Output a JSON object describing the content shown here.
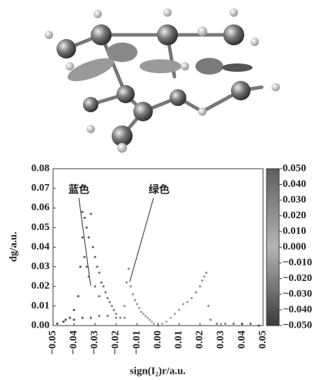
{
  "chart_data": {
    "type": "scatter",
    "xlabel": "sign(I₂)r/a.u.",
    "ylabel": "dg/a.u.",
    "annotations": [
      "蓝色",
      "绿色"
    ],
    "x": [
      -0.045,
      -0.042,
      -0.04,
      -0.038,
      -0.037,
      -0.036,
      -0.035,
      -0.034,
      -0.033,
      -0.032,
      -0.031,
      -0.03,
      -0.029,
      -0.028,
      -0.027,
      -0.026,
      -0.025,
      -0.024,
      -0.023,
      -0.022,
      -0.021,
      -0.02,
      -0.018,
      -0.033,
      -0.035,
      -0.03,
      -0.028,
      -0.036,
      -0.034,
      -0.016,
      -0.015,
      -0.014,
      -0.013,
      -0.012,
      -0.011,
      -0.01,
      -0.009,
      -0.008,
      -0.007,
      -0.006,
      -0.005,
      -0.004,
      -0.003,
      -0.002,
      0.0,
      0.002,
      0.004,
      0.006,
      0.008,
      0.01,
      0.012,
      0.014,
      0.016,
      0.018,
      0.02,
      0.021,
      0.022,
      0.023,
      0.024,
      0.025,
      0.028,
      0.032,
      0.036,
      0.04,
      0.044,
      0.048,
      -0.048,
      -0.044,
      -0.04,
      -0.036,
      -0.032,
      -0.028,
      -0.024,
      -0.02,
      -0.016
    ],
    "y": [
      0.002,
      0.004,
      0.008,
      0.015,
      0.03,
      0.058,
      0.055,
      0.05,
      0.045,
      0.057,
      0.04,
      0.035,
      0.03,
      0.027,
      0.022,
      0.02,
      0.017,
      0.014,
      0.012,
      0.01,
      0.008,
      0.006,
      0.004,
      0.025,
      0.035,
      0.02,
      0.015,
      0.045,
      0.03,
      0.01,
      0.022,
      0.029,
      0.02,
      0.016,
      0.013,
      0.011,
      0.009,
      0.007,
      0.006,
      0.005,
      0.004,
      0.003,
      0.002,
      0.001,
      0.0,
      0.001,
      0.002,
      0.004,
      0.006,
      0.008,
      0.011,
      0.012,
      0.014,
      0.017,
      0.02,
      0.023,
      0.025,
      0.027,
      0.01,
      0.003,
      0.001,
      0.001,
      0.001,
      0.001,
      0.001,
      0.0,
      0.001,
      0.003,
      0.003,
      0.004,
      0.004,
      0.005,
      0.005,
      0.004,
      0.004
    ],
    "xlim": [
      -0.05,
      0.05
    ],
    "xticks": [
      {
        "value": -0.05,
        "label": "−0.05"
      },
      {
        "value": -0.04,
        "label": "−0.04"
      },
      {
        "value": -0.03,
        "label": "−0.03"
      },
      {
        "value": -0.02,
        "label": "−0.02"
      },
      {
        "value": -0.01,
        "label": "−0.01"
      },
      {
        "value": 0,
        "label": "0.00"
      },
      0.01,
      0.02,
      0.03,
      0.04,
      0.05
    ],
    "ylim": [
      0,
      0.08
    ],
    "yticks": [
      {
        "value": 0,
        "label": "0.00"
      },
      0.01,
      0.02,
      0.03,
      0.04,
      0.05,
      0.06,
      0.07,
      0.08
    ],
    "clim": [
      -0.05,
      0.05
    ],
    "cticks": [
      {
        "value": 0.05,
        "label": "0.050"
      },
      {
        "value": 0.04,
        "label": "0.040"
      },
      {
        "value": 0.03,
        "label": "0.030"
      },
      {
        "value": 0.02,
        "label": "0.020"
      },
      {
        "value": 0.01,
        "label": "0.010"
      },
      {
        "value": 0,
        "label": "0.000"
      },
      {
        "value": -0.01,
        "label": "−0.010"
      },
      {
        "value": -0.02,
        "label": "−0.020"
      },
      {
        "value": -0.03,
        "label": "−0.030"
      },
      {
        "value": -0.04,
        "label": "−0.040"
      },
      {
        "value": -0.05,
        "label": "−0.050"
      }
    ],
    "colormap": [
      "#3a3a3a",
      "#b4b4b4",
      "#5e5e5e"
    ]
  }
}
